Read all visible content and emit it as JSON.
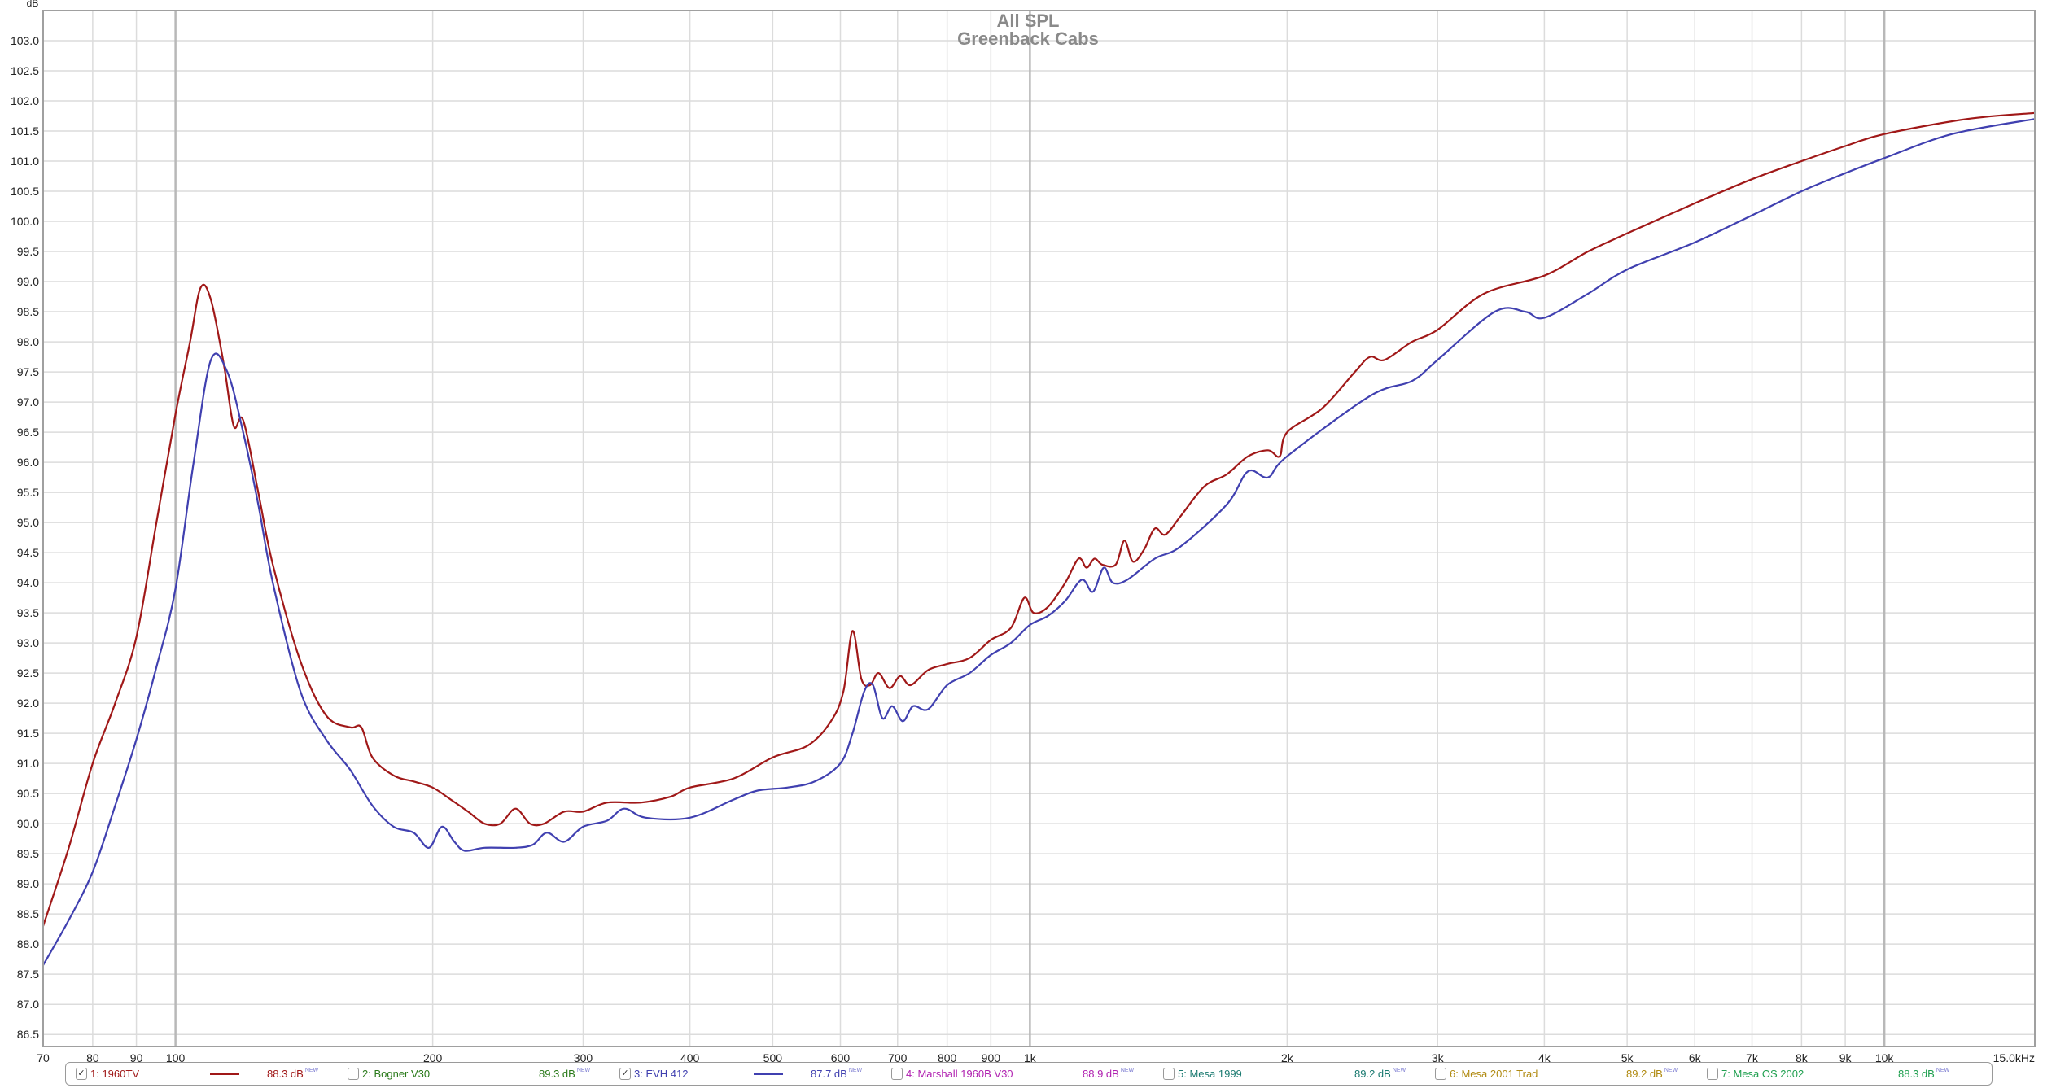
{
  "chart_data": {
    "type": "line",
    "title": "All SPL",
    "subtitle": "Greenback Cabs",
    "ylabel": "dB",
    "xlabel": "",
    "xscale": "log",
    "xlim": [
      70,
      15000
    ],
    "ylim": [
      86.3,
      103.5
    ],
    "grid": true,
    "legend_placement": "bottom",
    "y_ticks": [
      "103.0",
      "102.5",
      "102.0",
      "101.5",
      "101.0",
      "100.5",
      "100.0",
      "99.5",
      "99.0",
      "98.5",
      "98.0",
      "97.5",
      "97.0",
      "96.5",
      "96.0",
      "95.5",
      "95.0",
      "94.5",
      "94.0",
      "93.5",
      "93.0",
      "92.5",
      "92.0",
      "91.5",
      "91.0",
      "90.5",
      "90.0",
      "89.5",
      "89.0",
      "88.5",
      "88.0",
      "87.5",
      "87.0",
      "86.5"
    ],
    "x_ticks": [
      {
        "f": 70,
        "label": "70"
      },
      {
        "f": 80,
        "label": "80"
      },
      {
        "f": 90,
        "label": "90"
      },
      {
        "f": 100,
        "label": "100"
      },
      {
        "f": 200,
        "label": "200"
      },
      {
        "f": 300,
        "label": "300"
      },
      {
        "f": 400,
        "label": "400"
      },
      {
        "f": 500,
        "label": "500"
      },
      {
        "f": 600,
        "label": "600"
      },
      {
        "f": 700,
        "label": "700"
      },
      {
        "f": 800,
        "label": "800"
      },
      {
        "f": 900,
        "label": "900"
      },
      {
        "f": 1000,
        "label": "1k"
      },
      {
        "f": 2000,
        "label": "2k"
      },
      {
        "f": 3000,
        "label": "3k"
      },
      {
        "f": 4000,
        "label": "4k"
      },
      {
        "f": 5000,
        "label": "5k"
      },
      {
        "f": 6000,
        "label": "6k"
      },
      {
        "f": 7000,
        "label": "7k"
      },
      {
        "f": 8000,
        "label": "8k"
      },
      {
        "f": 9000,
        "label": "9k"
      },
      {
        "f": 10000,
        "label": "10k"
      },
      {
        "f": 15000,
        "label": "15.0kHz"
      }
    ],
    "series": [
      {
        "name": "1: 1960TV",
        "color": "#a01818",
        "points": [
          [
            70,
            88.3
          ],
          [
            75,
            89.6
          ],
          [
            80,
            91.0
          ],
          [
            85,
            92.0
          ],
          [
            90,
            93.1
          ],
          [
            95,
            95.0
          ],
          [
            100,
            96.8
          ],
          [
            104,
            98.0
          ],
          [
            107,
            98.9
          ],
          [
            110,
            98.7
          ],
          [
            114,
            97.6
          ],
          [
            117,
            96.6
          ],
          [
            120,
            96.7
          ],
          [
            125,
            95.5
          ],
          [
            130,
            94.3
          ],
          [
            140,
            92.7
          ],
          [
            150,
            91.8
          ],
          [
            160,
            91.6
          ],
          [
            165,
            91.6
          ],
          [
            170,
            91.1
          ],
          [
            180,
            90.8
          ],
          [
            190,
            90.7
          ],
          [
            200,
            90.6
          ],
          [
            210,
            90.4
          ],
          [
            220,
            90.2
          ],
          [
            230,
            90.0
          ],
          [
            240,
            90.0
          ],
          [
            250,
            90.25
          ],
          [
            260,
            90.0
          ],
          [
            270,
            90.0
          ],
          [
            285,
            90.2
          ],
          [
            300,
            90.2
          ],
          [
            320,
            90.35
          ],
          [
            350,
            90.35
          ],
          [
            380,
            90.45
          ],
          [
            400,
            90.6
          ],
          [
            450,
            90.75
          ],
          [
            500,
            91.1
          ],
          [
            550,
            91.3
          ],
          [
            585,
            91.7
          ],
          [
            605,
            92.2
          ],
          [
            620,
            93.2
          ],
          [
            635,
            92.4
          ],
          [
            650,
            92.3
          ],
          [
            665,
            92.5
          ],
          [
            685,
            92.25
          ],
          [
            705,
            92.45
          ],
          [
            725,
            92.3
          ],
          [
            760,
            92.55
          ],
          [
            800,
            92.65
          ],
          [
            850,
            92.75
          ],
          [
            900,
            93.05
          ],
          [
            950,
            93.25
          ],
          [
            985,
            93.75
          ],
          [
            1010,
            93.5
          ],
          [
            1050,
            93.6
          ],
          [
            1100,
            94.0
          ],
          [
            1140,
            94.4
          ],
          [
            1165,
            94.25
          ],
          [
            1190,
            94.4
          ],
          [
            1215,
            94.3
          ],
          [
            1260,
            94.3
          ],
          [
            1290,
            94.7
          ],
          [
            1320,
            94.35
          ],
          [
            1360,
            94.55
          ],
          [
            1400,
            94.9
          ],
          [
            1440,
            94.8
          ],
          [
            1500,
            95.1
          ],
          [
            1600,
            95.6
          ],
          [
            1700,
            95.8
          ],
          [
            1800,
            96.1
          ],
          [
            1900,
            96.2
          ],
          [
            1960,
            96.1
          ],
          [
            2000,
            96.5
          ],
          [
            2200,
            96.9
          ],
          [
            2400,
            97.5
          ],
          [
            2500,
            97.75
          ],
          [
            2600,
            97.7
          ],
          [
            2800,
            98.0
          ],
          [
            3000,
            98.2
          ],
          [
            3400,
            98.8
          ],
          [
            4000,
            99.1
          ],
          [
            4500,
            99.5
          ],
          [
            5000,
            99.8
          ],
          [
            6000,
            100.3
          ],
          [
            7000,
            100.7
          ],
          [
            8000,
            101.0
          ],
          [
            9000,
            101.25
          ],
          [
            10000,
            101.45
          ],
          [
            12500,
            101.7
          ],
          [
            15000,
            101.8
          ]
        ]
      },
      {
        "name": "2: Bogner V30",
        "color": "#2a7a1a"
      },
      {
        "name": "3: EVH 412",
        "color": "#4040b0",
        "points": [
          [
            70,
            87.65
          ],
          [
            75,
            88.4
          ],
          [
            80,
            89.2
          ],
          [
            85,
            90.3
          ],
          [
            90,
            91.4
          ],
          [
            95,
            92.6
          ],
          [
            100,
            93.9
          ],
          [
            105,
            96.0
          ],
          [
            110,
            97.7
          ],
          [
            115,
            97.5
          ],
          [
            120,
            96.5
          ],
          [
            125,
            95.3
          ],
          [
            130,
            94.0
          ],
          [
            140,
            92.2
          ],
          [
            150,
            91.4
          ],
          [
            160,
            90.9
          ],
          [
            170,
            90.3
          ],
          [
            180,
            89.95
          ],
          [
            190,
            89.85
          ],
          [
            198,
            89.6
          ],
          [
            205,
            89.95
          ],
          [
            212,
            89.7
          ],
          [
            218,
            89.55
          ],
          [
            230,
            89.6
          ],
          [
            250,
            89.6
          ],
          [
            262,
            89.65
          ],
          [
            272,
            89.85
          ],
          [
            285,
            89.7
          ],
          [
            300,
            89.95
          ],
          [
            320,
            90.05
          ],
          [
            335,
            90.25
          ],
          [
            355,
            90.1
          ],
          [
            400,
            90.1
          ],
          [
            450,
            90.4
          ],
          [
            480,
            90.55
          ],
          [
            520,
            90.6
          ],
          [
            560,
            90.7
          ],
          [
            600,
            91.0
          ],
          [
            620,
            91.5
          ],
          [
            640,
            92.2
          ],
          [
            655,
            92.3
          ],
          [
            672,
            91.75
          ],
          [
            690,
            91.95
          ],
          [
            710,
            91.7
          ],
          [
            730,
            91.95
          ],
          [
            760,
            91.9
          ],
          [
            800,
            92.3
          ],
          [
            850,
            92.5
          ],
          [
            900,
            92.8
          ],
          [
            950,
            93.0
          ],
          [
            1000,
            93.3
          ],
          [
            1050,
            93.45
          ],
          [
            1100,
            93.7
          ],
          [
            1150,
            94.05
          ],
          [
            1185,
            93.85
          ],
          [
            1220,
            94.25
          ],
          [
            1250,
            94.0
          ],
          [
            1300,
            94.05
          ],
          [
            1400,
            94.4
          ],
          [
            1500,
            94.6
          ],
          [
            1700,
            95.3
          ],
          [
            1800,
            95.85
          ],
          [
            1900,
            95.75
          ],
          [
            2000,
            96.1
          ],
          [
            2500,
            97.1
          ],
          [
            2800,
            97.35
          ],
          [
            3000,
            97.7
          ],
          [
            3500,
            98.5
          ],
          [
            3800,
            98.5
          ],
          [
            4000,
            98.4
          ],
          [
            4500,
            98.8
          ],
          [
            5000,
            99.2
          ],
          [
            6000,
            99.65
          ],
          [
            7000,
            100.1
          ],
          [
            8000,
            100.5
          ],
          [
            9000,
            100.8
          ],
          [
            10000,
            101.05
          ],
          [
            12000,
            101.45
          ],
          [
            15000,
            101.7
          ]
        ]
      },
      {
        "name": "4: Marshall 1960B V30",
        "color": "#b020b0"
      },
      {
        "name": "5: Mesa 1999",
        "color": "#1a7a70"
      },
      {
        "name": "6: Mesa 2001 Trad",
        "color": "#b08a10"
      },
      {
        "name": "7: Mesa OS 2002",
        "color": "#20a050"
      }
    ]
  },
  "legend": {
    "items": [
      {
        "label": "1: 1960TV",
        "checked": true,
        "value": "88.3 dB",
        "badge": "NEW",
        "color": "#a01818"
      },
      {
        "label": "2: Bogner V30",
        "checked": false,
        "value": "89.3 dB",
        "badge": "NEW",
        "color": "#2a7a1a"
      },
      {
        "label": "3: EVH 412",
        "checked": true,
        "value": "87.7 dB",
        "badge": "NEW",
        "color": "#4040b0"
      },
      {
        "label": "4: Marshall 1960B V30",
        "checked": false,
        "value": "88.9 dB",
        "badge": "NEW",
        "color": "#b020b0"
      },
      {
        "label": "5: Mesa 1999",
        "checked": false,
        "value": "89.2 dB",
        "badge": "NEW",
        "color": "#1a7a70"
      },
      {
        "label": "6: Mesa 2001 Trad",
        "checked": false,
        "value": "89.2 dB",
        "badge": "NEW",
        "color": "#b08a10"
      },
      {
        "label": "7: Mesa OS 2002",
        "checked": false,
        "value": "88.3 dB",
        "badge": "NEW",
        "color": "#20a050"
      }
    ]
  }
}
